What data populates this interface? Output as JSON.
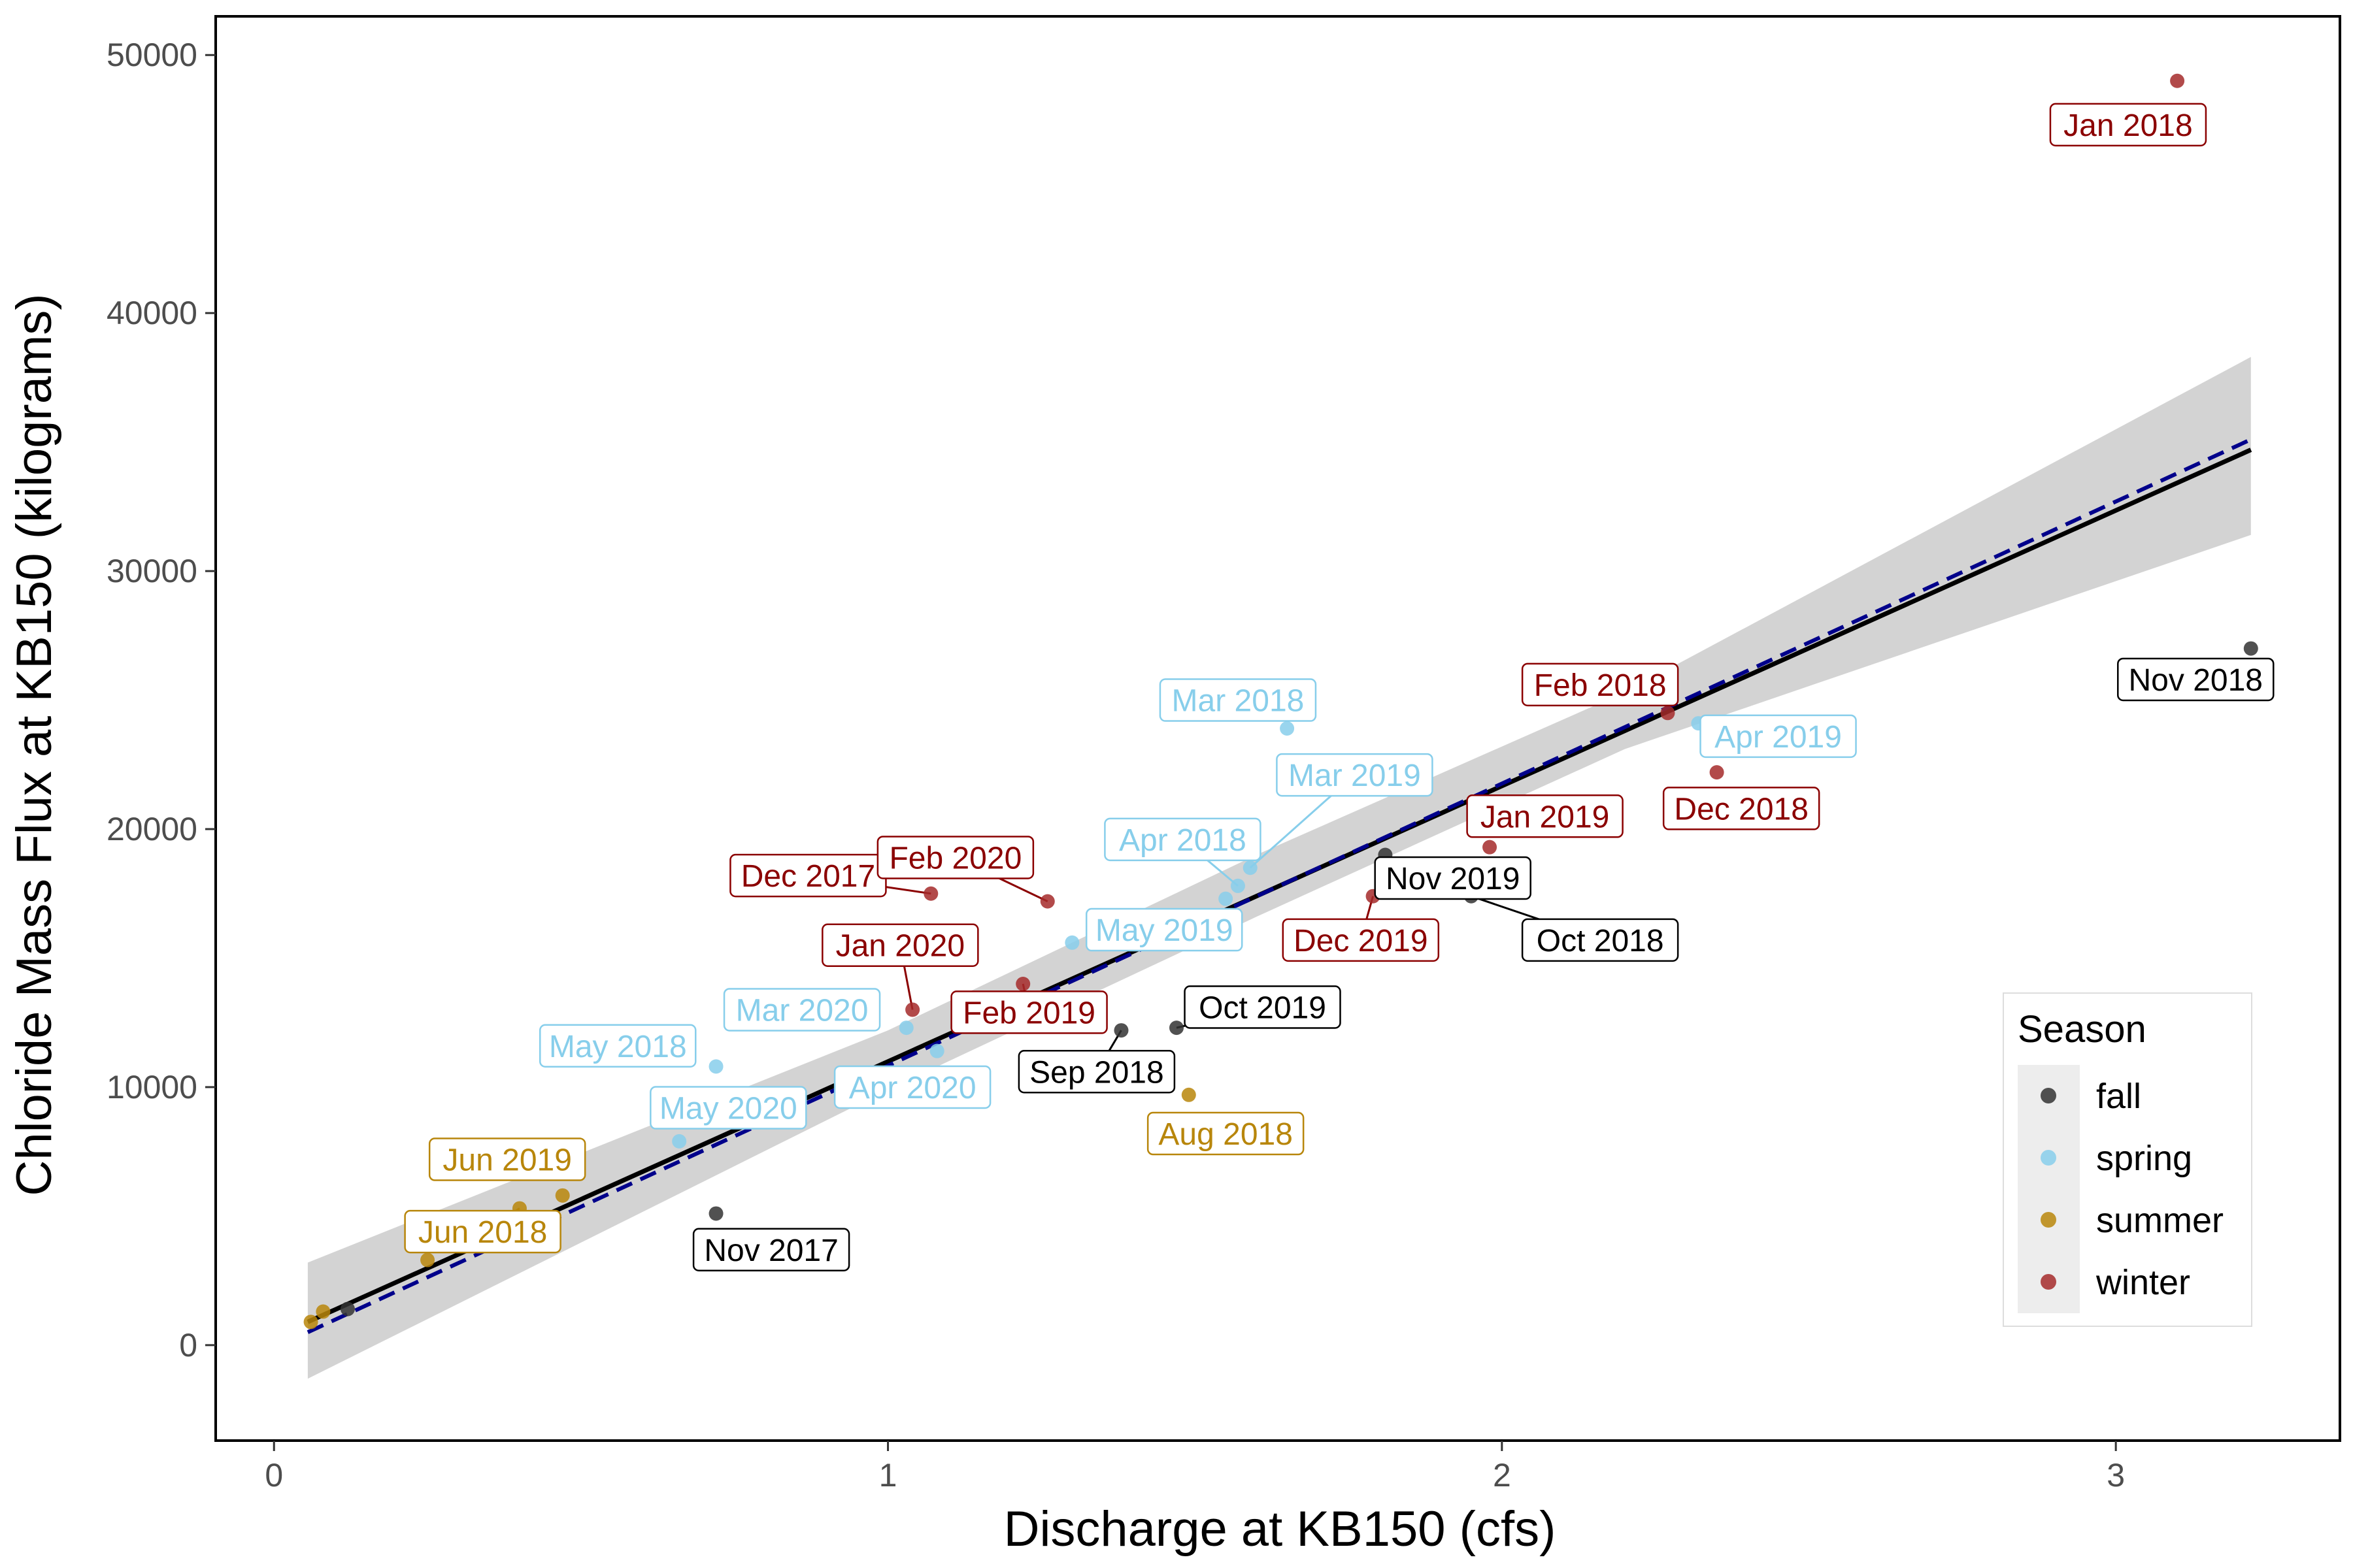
{
  "chart_data": {
    "type": "scatter",
    "xlabel": "Discharge at KB150 (cfs)",
    "ylabel": "Chloride Mass Flux at KB150 (kilograms)",
    "xlim": [
      -0.095,
      3.365
    ],
    "ylim": [
      -3700,
      51500
    ],
    "x_ticks": [
      0,
      1,
      2,
      3
    ],
    "y_ticks": [
      0,
      10000,
      20000,
      30000,
      40000,
      50000
    ],
    "grid": false,
    "legend": {
      "title": "Season",
      "position": "right-bottom-inside",
      "entries": [
        {
          "key": "fall",
          "label": "fall",
          "color": "#333333"
        },
        {
          "key": "spring",
          "label": "spring",
          "color": "#87ceeb"
        },
        {
          "key": "summer",
          "label": "summer",
          "color": "#b8860b"
        },
        {
          "key": "winter",
          "label": "winter",
          "color": "#a52a2a"
        }
      ]
    },
    "label_colors": {
      "fall": "#000000",
      "spring": "#87ceeb",
      "summer": "#b8860b",
      "winter": "#8b0000"
    },
    "fit_solid": {
      "x": [
        0.055,
        3.22
      ],
      "y": [
        900,
        34700
      ],
      "color": "#000000"
    },
    "fit_dashed": {
      "x": [
        0.055,
        3.22
      ],
      "y": [
        500,
        35100
      ],
      "color": "#00008b"
    },
    "confidence_band": {
      "x": [
        0.055,
        1.0,
        1.6,
        2.2,
        3.22
      ],
      "upper": [
        3200,
        12200,
        19000,
        25300,
        38300
      ],
      "lower": [
        -1300,
        9900,
        16600,
        23100,
        31400
      ],
      "color": "#d3d3d3"
    },
    "points": [
      {
        "x": 3.1,
        "y": 49000,
        "season": "winter",
        "label": "Jan 2018",
        "lx": 3.02,
        "ly": 47300
      },
      {
        "x": 3.22,
        "y": 27000,
        "season": "fall",
        "label": "Nov 2018",
        "lx": 3.13,
        "ly": 25800
      },
      {
        "x": 2.27,
        "y": 24500,
        "season": "winter",
        "label": "Feb 2018",
        "lx": 2.16,
        "ly": 25600
      },
      {
        "x": 2.32,
        "y": 24100,
        "season": "spring",
        "label": "Apr 2019",
        "lx": 2.45,
        "ly": 23600
      },
      {
        "x": 2.35,
        "y": 22200,
        "season": "winter",
        "label": "Dec 2018",
        "lx": 2.39,
        "ly": 20800
      },
      {
        "x": 1.65,
        "y": 23900,
        "season": "spring",
        "label": "Mar 2018",
        "lx": 1.57,
        "ly": 25000
      },
      {
        "x": 1.59,
        "y": 18500,
        "season": "spring",
        "label": "Mar 2019",
        "lx": 1.76,
        "ly": 22100,
        "leader": true
      },
      {
        "x": 1.57,
        "y": 17800,
        "season": "spring",
        "label": "Apr 2018",
        "lx": 1.48,
        "ly": 19600,
        "leader": true
      },
      {
        "x": 1.55,
        "y": 17300,
        "season": "spring",
        "label": "",
        "lx": null,
        "ly": null
      },
      {
        "x": 1.98,
        "y": 19300,
        "season": "winter",
        "label": "Jan 2019",
        "lx": 2.07,
        "ly": 20500
      },
      {
        "x": 1.81,
        "y": 19000,
        "season": "fall",
        "label": "Nov 2019",
        "lx": 1.92,
        "ly": 18100
      },
      {
        "x": 1.79,
        "y": 17400,
        "season": "winter",
        "label": "Dec 2019",
        "lx": 1.77,
        "ly": 15700,
        "leader": true
      },
      {
        "x": 1.95,
        "y": 17400,
        "season": "fall",
        "label": "Oct 2018",
        "lx": 2.16,
        "ly": 15700,
        "leader": true
      },
      {
        "x": 1.07,
        "y": 17500,
        "season": "winter",
        "label": "Dec 2017",
        "lx": 0.87,
        "ly": 18200,
        "leader": true
      },
      {
        "x": 1.26,
        "y": 17200,
        "season": "winter",
        "label": "Feb 2020",
        "lx": 1.11,
        "ly": 18900,
        "leader": true
      },
      {
        "x": 1.3,
        "y": 15600,
        "season": "spring",
        "label": "May 2019",
        "lx": 1.45,
        "ly": 16100
      },
      {
        "x": 1.04,
        "y": 13000,
        "season": "winter",
        "label": "Jan 2020",
        "lx": 1.02,
        "ly": 15500,
        "leader": true
      },
      {
        "x": 1.22,
        "y": 14000,
        "season": "winter",
        "label": "Feb 2019",
        "lx": 1.23,
        "ly": 12900,
        "leader": true
      },
      {
        "x": 1.03,
        "y": 12300,
        "season": "spring",
        "label": "Mar 2020",
        "lx": 0.86,
        "ly": 13000
      },
      {
        "x": 1.08,
        "y": 11400,
        "season": "spring",
        "label": "Apr 2020",
        "lx": 1.04,
        "ly": 10000
      },
      {
        "x": 0.72,
        "y": 10800,
        "season": "spring",
        "label": "May 2018",
        "lx": 0.56,
        "ly": 11600
      },
      {
        "x": 0.66,
        "y": 7900,
        "season": "spring",
        "label": "May 2020",
        "lx": 0.74,
        "ly": 9200
      },
      {
        "x": 1.38,
        "y": 12200,
        "season": "fall",
        "label": "Sep 2018",
        "lx": 1.34,
        "ly": 10600,
        "leader": true
      },
      {
        "x": 1.47,
        "y": 12300,
        "season": "fall",
        "label": "Oct 2019",
        "lx": 1.61,
        "ly": 13100,
        "leader": true
      },
      {
        "x": 1.49,
        "y": 9700,
        "season": "summer",
        "label": "Aug 2018",
        "lx": 1.55,
        "ly": 8200
      },
      {
        "x": 0.72,
        "y": 5100,
        "season": "fall",
        "label": "Nov 2017",
        "lx": 0.81,
        "ly": 3700
      },
      {
        "x": 0.47,
        "y": 5800,
        "season": "summer",
        "label": "Jun 2019",
        "lx": 0.38,
        "ly": 7200
      },
      {
        "x": 0.4,
        "y": 5300,
        "season": "summer",
        "label": "Jun 2018",
        "lx": 0.34,
        "ly": 4400,
        "leader": true
      },
      {
        "x": 0.25,
        "y": 3300,
        "season": "summer",
        "label": "",
        "lx": null,
        "ly": null
      },
      {
        "x": 0.12,
        "y": 1400,
        "season": "fall",
        "label": "",
        "lx": null,
        "ly": null
      },
      {
        "x": 0.08,
        "y": 1300,
        "season": "summer",
        "label": "",
        "lx": null,
        "ly": null
      },
      {
        "x": 0.06,
        "y": 900,
        "season": "summer",
        "label": "",
        "lx": null,
        "ly": null
      }
    ]
  }
}
